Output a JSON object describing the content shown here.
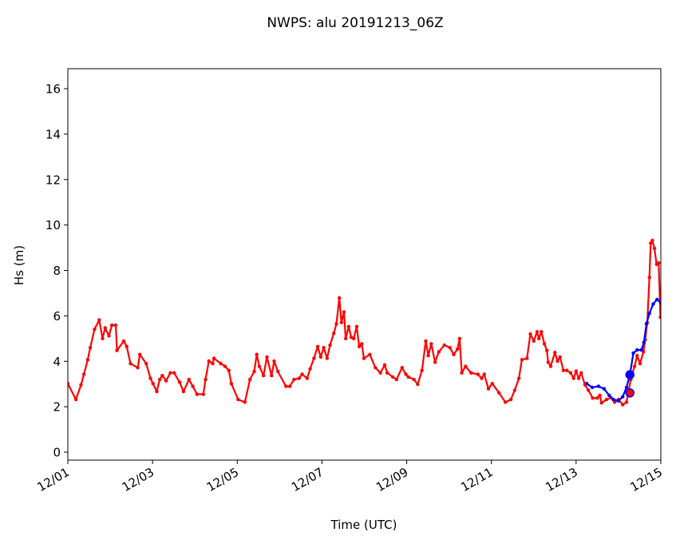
{
  "chart_data": {
    "type": "line",
    "title": "NWPS: alu 20191213_06Z",
    "xlabel": "Time (UTC)",
    "ylabel": "Hs (m)",
    "x_units": "days since 12/01 00Z",
    "xlim": [
      0,
      14
    ],
    "ylim": [
      -0.35,
      16.88
    ],
    "xticks": [
      0,
      2,
      4,
      6,
      8,
      10,
      12,
      14
    ],
    "xtick_labels": [
      "12/01",
      "12/03",
      "12/05",
      "12/07",
      "12/09",
      "12/11",
      "12/13",
      "12/15"
    ],
    "yticks": [
      0,
      2,
      4,
      6,
      8,
      10,
      12,
      14,
      16
    ],
    "ytick_labels": [
      "0",
      "2",
      "4",
      "6",
      "8",
      "10",
      "12",
      "14",
      "16"
    ],
    "grid": false,
    "legend": "none",
    "colors": {
      "observed": "#ff0000",
      "model": "#0000ff"
    },
    "series": [
      {
        "name": "observed",
        "color": "#ff0000",
        "x": [
          0,
          0.19,
          0.31,
          0.38,
          0.47,
          0.53,
          0.63,
          0.74,
          0.82,
          0.88,
          0.97,
          1.04,
          1.13,
          1.16,
          1.32,
          1.39,
          1.48,
          1.65,
          1.7,
          1.85,
          1.95,
          2.01,
          2.1,
          2.17,
          2.23,
          2.32,
          2.42,
          2.51,
          2.64,
          2.73,
          2.86,
          2.95,
          3.05,
          3.2,
          3.25,
          3.33,
          3.42,
          3.45,
          3.61,
          3.71,
          3.8,
          3.86,
          4.02,
          4.18,
          4.3,
          4.4,
          4.46,
          4.52,
          4.62,
          4.7,
          4.81,
          4.87,
          4.96,
          5.15,
          5.24,
          5.34,
          5.46,
          5.53,
          5.65,
          5.72,
          5.81,
          5.9,
          5.97,
          6.04,
          6.12,
          6.19,
          6.28,
          6.34,
          6.41,
          6.46,
          6.52,
          6.56,
          6.63,
          6.69,
          6.75,
          6.82,
          6.88,
          6.94,
          6.99,
          7.13,
          7.26,
          7.38,
          7.48,
          7.54,
          7.67,
          7.76,
          7.89,
          7.98,
          8.04,
          8.17,
          8.26,
          8.36,
          8.45,
          8.51,
          8.58,
          8.67,
          8.76,
          8.89,
          9.02,
          9.11,
          9.2,
          9.25,
          9.3,
          9.39,
          9.52,
          9.68,
          9.77,
          9.83,
          9.93,
          10.02,
          10.18,
          10.33,
          10.46,
          10.55,
          10.65,
          10.72,
          10.84,
          10.92,
          11.0,
          11.08,
          11.12,
          11.18,
          11.25,
          11.31,
          11.34,
          11.4,
          11.5,
          11.56,
          11.62,
          11.7,
          11.78,
          11.87,
          11.94,
          12.0,
          12.06,
          12.12,
          12.21,
          12.29,
          12.39,
          12.5,
          12.56,
          12.6,
          12.72,
          12.82,
          12.91,
          13.0,
          13.1,
          13.19,
          13.29,
          13.38,
          13.44,
          13.51,
          13.59,
          13.63,
          13.68,
          13.73,
          13.76,
          13.8,
          13.85,
          13.9,
          13.95,
          13.99
        ],
        "y": [
          3.02,
          2.32,
          2.96,
          3.43,
          4.07,
          4.6,
          5.41,
          5.82,
          5.0,
          5.47,
          5.12,
          5.59,
          5.59,
          4.48,
          4.89,
          4.65,
          3.9,
          3.72,
          4.3,
          3.9,
          3.25,
          3.02,
          2.67,
          3.2,
          3.37,
          3.14,
          3.49,
          3.49,
          3.08,
          2.67,
          3.2,
          2.9,
          2.55,
          2.55,
          3.2,
          4.01,
          3.9,
          4.13,
          3.9,
          3.78,
          3.6,
          3.02,
          2.32,
          2.2,
          3.2,
          3.55,
          4.3,
          3.78,
          3.37,
          4.19,
          3.37,
          4.01,
          3.55,
          2.9,
          2.9,
          3.2,
          3.25,
          3.43,
          3.25,
          3.67,
          4.13,
          4.65,
          4.19,
          4.6,
          4.13,
          4.71,
          5.24,
          5.65,
          6.79,
          5.71,
          6.17,
          5.0,
          5.53,
          5.06,
          5.0,
          5.53,
          4.65,
          4.77,
          4.13,
          4.3,
          3.72,
          3.49,
          3.84,
          3.49,
          3.31,
          3.2,
          3.72,
          3.43,
          3.31,
          3.2,
          2.99,
          3.6,
          4.89,
          4.25,
          4.77,
          3.96,
          4.42,
          4.71,
          4.6,
          4.3,
          4.54,
          5.0,
          3.49,
          3.78,
          3.49,
          3.43,
          3.25,
          3.43,
          2.79,
          3.02,
          2.61,
          2.2,
          2.32,
          2.73,
          3.25,
          4.07,
          4.13,
          5.2,
          4.89,
          5.3,
          5.0,
          5.3,
          4.77,
          4.48,
          3.96,
          3.78,
          4.39,
          4.01,
          4.19,
          3.6,
          3.6,
          3.49,
          3.25,
          3.57,
          3.25,
          3.49,
          2.96,
          2.73,
          2.38,
          2.38,
          2.5,
          2.17,
          2.32,
          2.4,
          2.2,
          2.32,
          2.09,
          2.2,
          3.2,
          3.78,
          4.25,
          3.9,
          4.42,
          4.95,
          5.7,
          7.69,
          9.2,
          9.32,
          8.97,
          8.27,
          8.33,
          5.94
        ]
      },
      {
        "name": "model",
        "color": "#0000ff",
        "x": [
          12.25,
          12.38,
          12.53,
          12.66,
          12.78,
          12.88,
          13.0,
          13.1,
          13.19,
          13.27,
          13.35,
          13.44,
          13.54,
          13.6,
          13.66,
          13.73,
          13.82,
          13.91,
          14.0
        ],
        "y": [
          3.02,
          2.85,
          2.9,
          2.79,
          2.5,
          2.32,
          2.26,
          2.44,
          2.85,
          3.41,
          4.36,
          4.5,
          4.5,
          4.83,
          5.65,
          6.11,
          6.52,
          6.72,
          6.58
        ]
      }
    ],
    "highlight_points": [
      {
        "name": "model-analysis-point",
        "x": 13.27,
        "y": 3.41,
        "color": "#0000ff"
      },
      {
        "name": "observed-analysis-point",
        "x": 13.27,
        "y": 2.61,
        "color": "#ff0000",
        "edge": "#0000ff"
      }
    ]
  }
}
